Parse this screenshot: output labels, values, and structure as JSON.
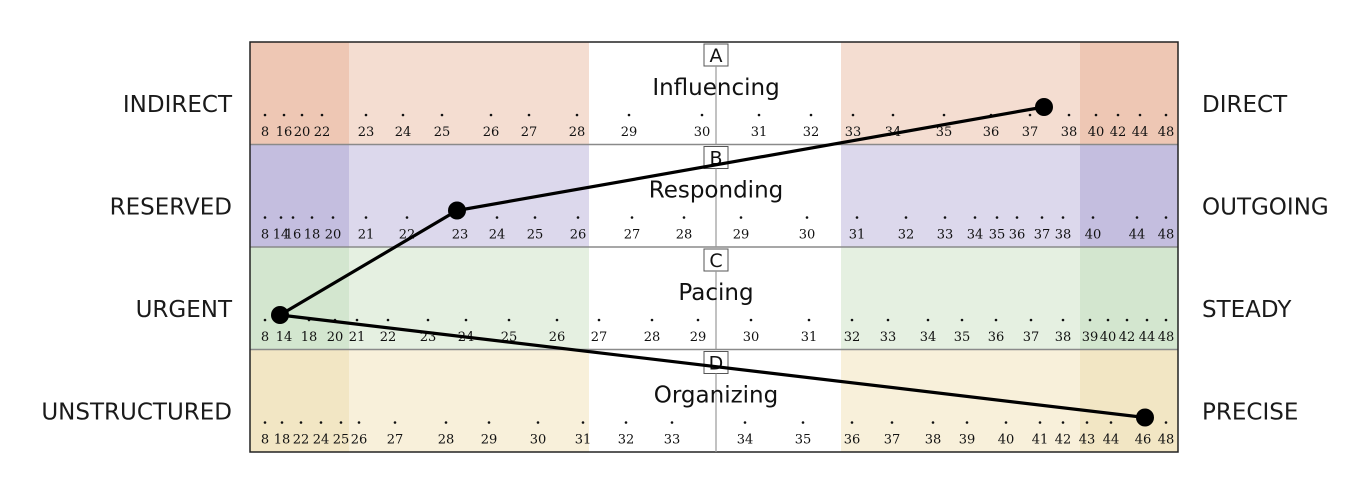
{
  "chart_data": {
    "type": "line",
    "rows": [
      {
        "letter": "A",
        "title": "Influencing",
        "left_label": "INDIRECT",
        "right_label": "DIRECT",
        "colors": {
          "dark": "#eec7b4",
          "light": "#f4ddd1"
        },
        "ticks": [
          "8",
          "16",
          "20",
          "22",
          "23",
          "24",
          "25",
          "26",
          "27",
          "28",
          "29",
          "30",
          "31",
          "32",
          "33",
          "34",
          "35",
          "36",
          "37",
          "38",
          "40",
          "42",
          "44",
          "48"
        ],
        "value": "37.5"
      },
      {
        "letter": "B",
        "title": "Responding",
        "left_label": "RESERVED",
        "right_label": "OUTGOING",
        "colors": {
          "dark": "#c4bedf",
          "light": "#dcd8ec"
        },
        "ticks": [
          "8",
          "14",
          "16",
          "18",
          "20",
          "21",
          "22",
          "23",
          "24",
          "25",
          "26",
          "27",
          "28",
          "29",
          "30",
          "31",
          "32",
          "33",
          "34",
          "35",
          "36",
          "37",
          "38",
          "40",
          "44",
          "48"
        ],
        "value": "22"
      },
      {
        "letter": "C",
        "title": "Pacing",
        "left_label": "URGENT",
        "right_label": "STEADY",
        "colors": {
          "dark": "#d3e6cf",
          "light": "#e5f0e1"
        },
        "ticks": [
          "8",
          "14",
          "18",
          "20",
          "21",
          "22",
          "23",
          "24",
          "25",
          "26",
          "27",
          "28",
          "29",
          "30",
          "31",
          "32",
          "33",
          "34",
          "35",
          "36",
          "37",
          "38",
          "39",
          "40",
          "42",
          "44",
          "48"
        ],
        "value": "11"
      },
      {
        "letter": "D",
        "title": "Organizing",
        "left_label": "UNSTRUCTURED",
        "right_label": "PRECISE",
        "colors": {
          "dark": "#f2e6c4",
          "light": "#f8f0da"
        },
        "ticks": [
          "8",
          "18",
          "22",
          "24",
          "25",
          "26",
          "27",
          "28",
          "29",
          "30",
          "31",
          "32",
          "33",
          "34",
          "35",
          "36",
          "37",
          "38",
          "39",
          "40",
          "41",
          "42",
          "43",
          "44",
          "46",
          "48"
        ],
        "value": "46"
      }
    ]
  }
}
